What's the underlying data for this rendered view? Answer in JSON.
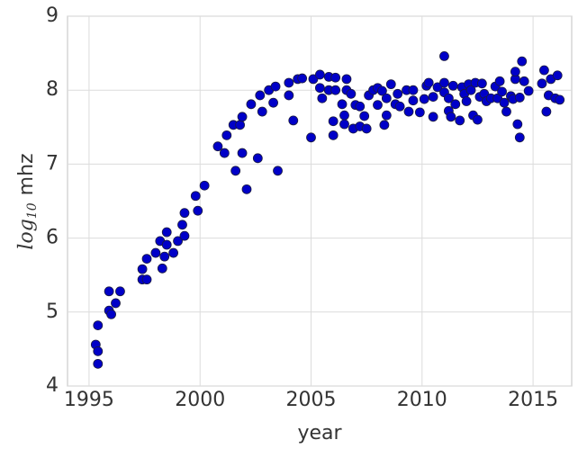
{
  "chart_data": {
    "type": "scatter",
    "xlabel": "year",
    "ylabel": {
      "base": "log",
      "subscript": "10",
      "unit": "mhz"
    },
    "xlim": [
      1994.03,
      2016.74
    ],
    "xticks": [
      1995,
      2000,
      2005,
      2010,
      2015
    ],
    "ylim": [
      4,
      9
    ],
    "yticks": [
      4,
      5,
      6,
      7,
      8,
      9
    ],
    "grid": true,
    "color": "#0000c8",
    "x": [
      1995.3,
      1995.4,
      1995.4,
      1995.4,
      1995.9,
      1995.9,
      1996.0,
      1996.2,
      1996.4,
      1997.4,
      1997.4,
      1997.6,
      1997.6,
      1998.0,
      1998.2,
      1998.3,
      1998.4,
      1998.5,
      1998.5,
      1998.8,
      1999.0,
      1999.2,
      1999.3,
      1999.3,
      1999.8,
      1999.9,
      2000.2,
      2000.8,
      2001.1,
      2001.2,
      2001.5,
      2001.6,
      2001.8,
      2001.9,
      2001.9,
      2002.1,
      2002.3,
      2002.6,
      2002.7,
      2002.8,
      2003.1,
      2003.3,
      2003.4,
      2003.5,
      2004.0,
      2004.0,
      2004.2,
      2004.4,
      2004.6,
      2005.0,
      2005.1,
      2005.4,
      2005.4,
      2005.5,
      2005.8,
      2005.8,
      2006.0,
      2006.0,
      2006.1,
      2006.1,
      2006.4,
      2006.5,
      2006.5,
      2006.6,
      2006.6,
      2006.8,
      2006.9,
      2007.0,
      2007.2,
      2007.2,
      2007.4,
      2007.5,
      2007.6,
      2007.8,
      2008.0,
      2008.0,
      2008.2,
      2008.3,
      2008.4,
      2008.4,
      2008.6,
      2008.8,
      2008.9,
      2009.0,
      2009.3,
      2009.4,
      2009.6,
      2009.6,
      2009.9,
      2010.1,
      2010.2,
      2010.3,
      2010.5,
      2010.5,
      2010.7,
      2011.0,
      2011.0,
      2011.0,
      2011.2,
      2011.2,
      2011.3,
      2011.4,
      2011.5,
      2011.7,
      2011.8,
      2011.9,
      2012.0,
      2012.1,
      2012.2,
      2012.3,
      2012.4,
      2012.5,
      2012.6,
      2012.7,
      2012.8,
      2012.9,
      2013.1,
      2013.3,
      2013.4,
      2013.5,
      2013.6,
      2013.7,
      2013.8,
      2014.0,
      2014.1,
      2014.2,
      2014.2,
      2014.3,
      2014.4,
      2014.4,
      2014.5,
      2014.6,
      2014.8,
      2015.4,
      2015.5,
      2015.6,
      2015.7,
      2015.8,
      2016.0,
      2016.1,
      2016.2
    ],
    "y": [
      4.56,
      4.3,
      4.47,
      4.82,
      5.02,
      5.28,
      4.97,
      5.12,
      5.28,
      5.58,
      5.44,
      5.44,
      5.72,
      5.8,
      5.96,
      5.59,
      5.75,
      6.08,
      5.91,
      5.8,
      5.96,
      6.18,
      6.03,
      6.34,
      6.57,
      6.37,
      6.71,
      7.24,
      7.15,
      7.39,
      7.53,
      6.91,
      7.53,
      7.15,
      7.64,
      6.66,
      7.81,
      7.08,
      7.93,
      7.71,
      8.0,
      7.83,
      8.05,
      6.91,
      8.1,
      7.93,
      7.59,
      8.15,
      8.16,
      7.36,
      8.15,
      8.21,
      8.03,
      7.89,
      8.18,
      8.0,
      7.58,
      7.39,
      8.17,
      8.0,
      7.81,
      7.54,
      7.66,
      8.15,
      8.0,
      7.95,
      7.48,
      7.8,
      7.78,
      7.51,
      7.65,
      7.48,
      7.93,
      8.0,
      7.8,
      8.03,
      7.99,
      7.53,
      7.89,
      7.66,
      8.08,
      7.81,
      7.95,
      7.78,
      8.0,
      7.71,
      7.86,
      8.0,
      7.7,
      7.88,
      8.06,
      8.1,
      7.91,
      7.64,
      8.04,
      7.97,
      8.46,
      8.1,
      7.72,
      7.89,
      7.64,
      8.06,
      7.81,
      7.59,
      8.04,
      7.95,
      7.85,
      8.08,
      8.0,
      7.66,
      8.1,
      7.6,
      7.91,
      8.09,
      7.95,
      7.85,
      7.89,
      8.05,
      7.89,
      8.12,
      7.98,
      7.83,
      7.71,
      7.92,
      7.88,
      8.15,
      8.25,
      7.54,
      7.36,
      7.9,
      8.39,
      8.12,
      7.99,
      8.09,
      8.27,
      7.71,
      7.93,
      8.15,
      7.89,
      8.2,
      7.87
    ]
  }
}
